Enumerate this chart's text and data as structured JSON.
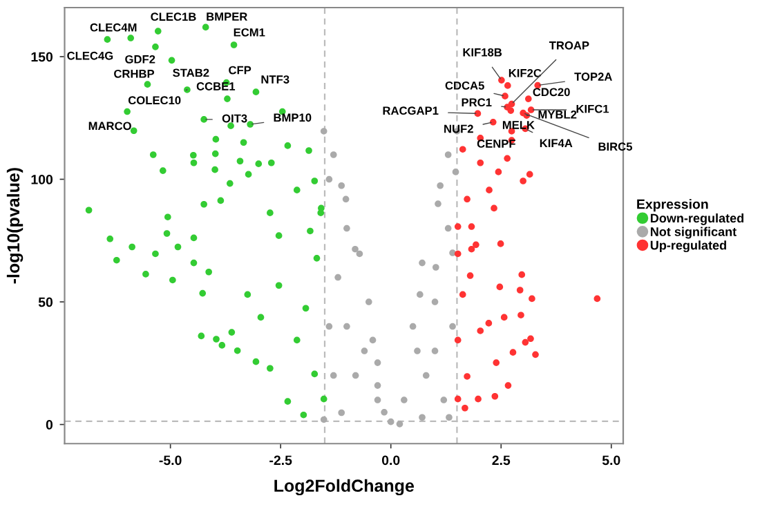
{
  "chart_data": {
    "type": "scatter",
    "xlabel": "Log2FoldChange",
    "ylabel": "-log10(pvalue)",
    "legend_title": "Expression",
    "legend": "right",
    "marker": "circle",
    "grid": false,
    "xlim": [
      -7.4,
      5.27
    ],
    "ylim": [
      -7.8,
      170
    ],
    "xticks": [
      {
        "value": -5,
        "label": "-5.0"
      },
      {
        "value": -2.5,
        "label": "-2.5"
      },
      {
        "value": 0,
        "label": "0.0"
      },
      {
        "value": 2.5,
        "label": "2.5"
      },
      {
        "value": 5,
        "label": "5.0"
      }
    ],
    "yticks": [
      0,
      50,
      100,
      150
    ],
    "ref_lines": [
      {
        "axis": "x",
        "value": -1.5,
        "color": "#bbbbbb",
        "line_style": "dashed"
      },
      {
        "axis": "x",
        "value": 1.5,
        "color": "#bbbbbb",
        "line_style": "dashed"
      },
      {
        "axis": "y",
        "value": 1.3,
        "color": "#bbbbbb",
        "line_style": "dashed"
      }
    ],
    "series": [
      {
        "name": "Down-regulated",
        "color": "#33cc33",
        "x": [
          -6.43,
          -5.9,
          -5.28,
          -4.2,
          -3.56,
          -5.34,
          -4.97,
          -5.52,
          -4.62,
          -3.73,
          -3.71,
          -3.06,
          -5.98,
          -5.83,
          -4.24,
          -3.63,
          -3.19,
          -2.46,
          -6.85,
          -6.37,
          -5.87,
          -6.22,
          -5.39,
          -5.17,
          -5.06,
          -5.08,
          -4.48,
          -4.47,
          -3.98,
          -3.99,
          -3.97,
          -3.34,
          -3.42,
          -3.0,
          -2.71,
          -2.34,
          -1.86,
          -3.23,
          -3.65,
          -4.24,
          -3.86,
          -4.47,
          -4.83,
          -5.34,
          -4.47,
          -5.56,
          -4.95,
          -4.3,
          -3.96,
          -3.83,
          -3.48,
          -3.61,
          -4.27,
          -4.13,
          -3.06,
          -2.74,
          -2.34,
          -1.98,
          -1.52,
          -1.73,
          -2.95,
          -2.54,
          -1.93,
          -1.68,
          -2.13,
          -3.25,
          -2.54,
          -1.83,
          -1.59,
          -1.73,
          -1.58,
          -2.13,
          -2.74
        ],
        "values": [
          157,
          157.6,
          160.4,
          162,
          154.8,
          154,
          148.5,
          138.7,
          136.5,
          139.4,
          132.8,
          135.6,
          127.6,
          119.8,
          124.4,
          121.8,
          122.4,
          127.6,
          87.4,
          75.7,
          72.4,
          67,
          110,
          103.5,
          84.6,
          77.9,
          109.8,
          106.7,
          110.4,
          103.9,
          116.3,
          115,
          107.4,
          106.3,
          106.7,
          113.7,
          111.7,
          102,
          98.3,
          89.8,
          91.3,
          76.1,
          72.4,
          69.6,
          65.9,
          61.3,
          58.9,
          36.1,
          34.8,
          32.3,
          30.1,
          37.6,
          53.5,
          62.2,
          25.6,
          22.9,
          9.4,
          3.9,
          10.4,
          20.6,
          43.7,
          56.7,
          47.4,
          67.8,
          34.4,
          53,
          77,
          78.9,
          86.3,
          99.3,
          88.2,
          95.6,
          86.3
        ]
      },
      {
        "name": "Not significant",
        "color": "#aaaaaa",
        "x": [
          -1.52,
          -1.12,
          -1.02,
          -0.71,
          -0.81,
          -0.41,
          -0.3,
          -1.12,
          -1.52,
          -0.3,
          0,
          0.71,
          1.32,
          0.66,
          1.02,
          1.07,
          1.12,
          1.47,
          1.5,
          0.71,
          -1.0,
          -0.5,
          0.5,
          1.0,
          -1.2,
          1.3,
          -1.4,
          1.4,
          -0.8,
          0.8,
          1.2,
          -1.3,
          0.3,
          -0.3,
          1.4,
          -1.4,
          0.6,
          -0.6,
          1.0,
          -1.0,
          1.3,
          -1.3,
          0.2,
          -0.15
        ],
        "values": [
          119.6,
          97.4,
          91.9,
          69.6,
          71.5,
          34.4,
          15.9,
          4.8,
          2,
          25.2,
          1.1,
          2.9,
          2.9,
          53,
          64.1,
          90,
          97.4,
          103,
          119.6,
          65.9,
          40,
          50,
          40,
          30,
          60,
          80,
          100,
          70,
          20,
          20,
          10,
          20,
          10,
          10,
          40,
          40,
          30,
          30,
          50,
          80,
          110,
          110,
          0.2,
          5
        ]
      },
      {
        "name": "Up-regulated",
        "color": "#ff3333",
        "x": [
          2.51,
          2.65,
          2.74,
          3.33,
          2.59,
          3.12,
          2.64,
          3.18,
          1.97,
          2.72,
          2.32,
          3.08,
          3.0,
          3.05,
          2.74,
          4.68,
          2.97,
          3.2,
          2.47,
          2.93,
          3.28,
          3.17,
          3.05,
          2.77,
          2.66,
          2.36,
          1.68,
          1.98,
          1.52,
          2.22,
          2.57,
          2.95,
          1.8,
          1.83,
          1.52,
          2.39,
          2.03,
          2.49,
          1.63,
          1.73,
          1.52,
          1.63,
          2.03,
          2.64,
          3.15,
          3.0,
          2.44,
          1.73,
          2.23,
          1.83,
          2.34,
          1.52,
          1.93,
          2.03,
          2.74
        ],
        "values": [
          140.4,
          138.2,
          130.7,
          138.3,
          133.9,
          132.8,
          129.4,
          128.3,
          126.8,
          128,
          123.3,
          126,
          127,
          120.6,
          119.6,
          51.3,
          61.1,
          51.3,
          56.1,
          54.8,
          28.5,
          35,
          33.5,
          29.4,
          15.9,
          11.5,
          6.7,
          10.4,
          10.4,
          41.3,
          43.7,
          44.6,
          60.7,
          71.5,
          80.7,
          25.2,
          38.2,
          73.7,
          53,
          19.6,
          34.4,
          112.2,
          106.7,
          108.5,
          102,
          99.3,
          103,
          91.9,
          95.6,
          80.7,
          88.2,
          69.6,
          73.3,
          116.8,
          115.9
        ]
      }
    ],
    "annotations": [
      {
        "text": "CLEC4G",
        "x": -6.43,
        "y": 157
      },
      {
        "text": "CLEC4M",
        "x": -5.9,
        "y": 157.6
      },
      {
        "text": "CLEC1B",
        "x": -5.28,
        "y": 160.4
      },
      {
        "text": "BMPER",
        "x": -4.2,
        "y": 162
      },
      {
        "text": "ECM1",
        "x": -3.56,
        "y": 154.8
      },
      {
        "text": "GDF2",
        "x": -5.34,
        "y": 154
      },
      {
        "text": "STAB2",
        "x": -4.97,
        "y": 148.5
      },
      {
        "text": "CRHBP",
        "x": -5.52,
        "y": 138.7
      },
      {
        "text": "COLEC10",
        "x": -4.62,
        "y": 136.5
      },
      {
        "text": "CFP",
        "x": -3.73,
        "y": 139.4
      },
      {
        "text": "CCBE1",
        "x": -3.71,
        "y": 132.8
      },
      {
        "text": "NTF3",
        "x": -3.06,
        "y": 135.6
      },
      {
        "text": "MARCO",
        "x": -5.98,
        "y": 127.6
      },
      {
        "text": "OIT3",
        "x": -4.24,
        "y": 124.4
      },
      {
        "text": "BMP10",
        "x": -3.19,
        "y": 122.4
      },
      {
        "text": "KIF18B",
        "x": 2.51,
        "y": 140.4
      },
      {
        "text": "KIF2C",
        "x": 2.65,
        "y": 138.2
      },
      {
        "text": "TROAP",
        "x": 2.74,
        "y": 130.7
      },
      {
        "text": "TOP2A",
        "x": 3.33,
        "y": 138.3
      },
      {
        "text": "CDCA5",
        "x": 2.59,
        "y": 133.9
      },
      {
        "text": "CDC20",
        "x": 3.12,
        "y": 132.8
      },
      {
        "text": "PRC1",
        "x": 2.64,
        "y": 129.4
      },
      {
        "text": "KIFC1",
        "x": 3.18,
        "y": 128.3
      },
      {
        "text": "RACGAP1",
        "x": 1.97,
        "y": 126.8
      },
      {
        "text": "MELK",
        "x": 2.72,
        "y": 128
      },
      {
        "text": "NUF2",
        "x": 2.32,
        "y": 123.3
      },
      {
        "text": "MYBL2",
        "x": 3.08,
        "y": 126
      },
      {
        "text": "BIRC5",
        "x": 3.0,
        "y": 127
      },
      {
        "text": "KIF4A",
        "x": 3.05,
        "y": 120.6
      },
      {
        "text": "CENPF",
        "x": 2.74,
        "y": 119.6
      }
    ]
  }
}
